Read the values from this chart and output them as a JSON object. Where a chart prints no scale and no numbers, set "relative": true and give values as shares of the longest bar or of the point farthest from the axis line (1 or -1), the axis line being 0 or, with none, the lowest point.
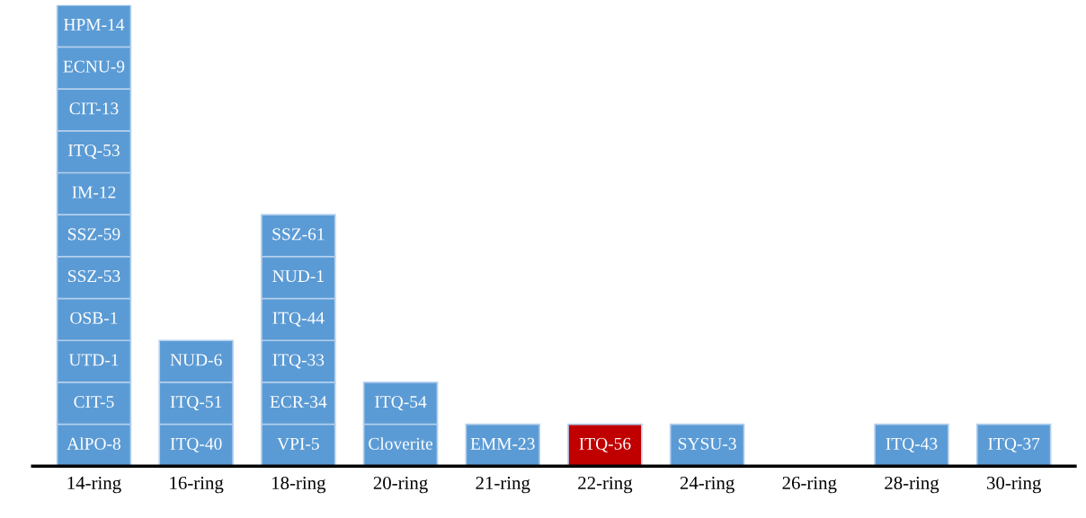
{
  "chart_data": {
    "type": "bar",
    "relative": true,
    "legend": false,
    "grid": false,
    "categories": [
      "14-ring",
      "16-ring",
      "18-ring",
      "20-ring",
      "21-ring",
      "22-ring",
      "24-ring",
      "26-ring",
      "28-ring",
      "30-ring"
    ],
    "values": [
      1,
      0.2727,
      0.5455,
      0.1818,
      0.0909,
      0.0909,
      0.0909,
      null,
      0.0909,
      0.0909
    ],
    "colors": [
      "#5b9bd5",
      "#5b9bd5",
      "#5b9bd5",
      "#5b9bd5",
      "#5b9bd5",
      "#c00000",
      "#5b9bd5",
      "#5b9bd5",
      "#5b9bd5",
      "#5b9bd5"
    ],
    "annotations": [
      "AlPO-8",
      "CIT-5",
      "UTD-1",
      "OSB-1",
      "SSZ-53",
      "SSZ-59",
      "IM-12",
      "ITQ-53",
      "CIT-13",
      "ECNU-9",
      "HPM-14",
      "ITQ-40",
      "ITQ-51",
      "NUD-6",
      "VPI-5",
      "ECR-34",
      "ITQ-33",
      "ITQ-44",
      "NUD-1",
      "SSZ-61",
      "Cloverite",
      "ITQ-54",
      "EMM-23",
      "ITQ-56",
      "SYSU-3",
      "ITQ-43",
      "ITQ-37"
    ]
  }
}
